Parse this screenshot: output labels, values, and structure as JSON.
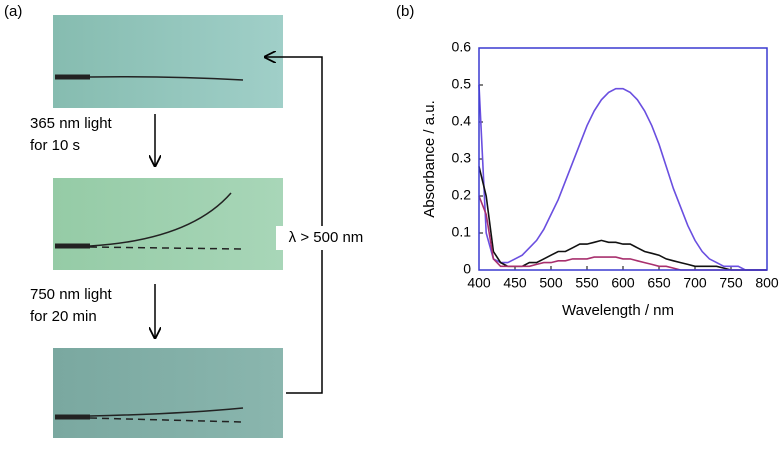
{
  "panel_a": {
    "label": "(a)",
    "step1": [
      "365 nm light",
      "for 10 s"
    ],
    "step2": [
      "750 nm light",
      "for 20 min"
    ],
    "return_label": "λ > 500 nm"
  },
  "chart_data": {
    "type": "line",
    "panel_label": "(b)",
    "x_label": "Wavelength / nm",
    "y_label": "Absorbance / a.u.",
    "x": [
      400,
      410,
      420,
      430,
      440,
      450,
      460,
      470,
      480,
      490,
      500,
      510,
      520,
      530,
      540,
      550,
      560,
      570,
      580,
      590,
      600,
      610,
      620,
      630,
      640,
      650,
      660,
      670,
      680,
      690,
      700,
      710,
      720,
      730,
      740,
      750,
      760,
      770,
      780,
      790,
      800
    ],
    "xlim": [
      400,
      800
    ],
    "xticks": [
      400,
      450,
      500,
      550,
      600,
      650,
      700,
      750,
      800
    ],
    "ylim": [
      0,
      0.6
    ],
    "yticks": [
      0,
      0.1,
      0.2,
      0.3,
      0.4,
      0.5,
      0.6
    ],
    "series": [
      {
        "color": "#6a4fe0",
        "values": [
          0.5,
          0.1,
          0.03,
          0.02,
          0.02,
          0.03,
          0.04,
          0.06,
          0.08,
          0.11,
          0.15,
          0.19,
          0.24,
          0.29,
          0.34,
          0.39,
          0.43,
          0.46,
          0.48,
          0.49,
          0.49,
          0.48,
          0.46,
          0.43,
          0.39,
          0.34,
          0.28,
          0.22,
          0.17,
          0.12,
          0.08,
          0.05,
          0.03,
          0.02,
          0.01,
          0.01,
          0.01,
          0,
          0,
          0,
          0
        ]
      },
      {
        "color": "#111111",
        "values": [
          0.28,
          0.2,
          0.05,
          0.02,
          0.01,
          0.01,
          0.01,
          0.02,
          0.02,
          0.03,
          0.04,
          0.05,
          0.05,
          0.06,
          0.07,
          0.07,
          0.075,
          0.08,
          0.075,
          0.075,
          0.07,
          0.07,
          0.06,
          0.05,
          0.045,
          0.04,
          0.03,
          0.025,
          0.02,
          0.015,
          0.01,
          0.01,
          0.01,
          0.01,
          0.005,
          0,
          0,
          0,
          0,
          0,
          0
        ]
      },
      {
        "color": "#a8306e",
        "values": [
          0.2,
          0.15,
          0.03,
          0.01,
          0.01,
          0.01,
          0.01,
          0.01,
          0.015,
          0.02,
          0.02,
          0.025,
          0.025,
          0.03,
          0.03,
          0.03,
          0.035,
          0.035,
          0.035,
          0.035,
          0.03,
          0.03,
          0.025,
          0.02,
          0.015,
          0.01,
          0.01,
          0.005,
          0,
          0,
          0,
          0,
          0,
          0,
          0,
          0,
          0,
          0,
          0,
          0,
          0
        ]
      }
    ]
  }
}
